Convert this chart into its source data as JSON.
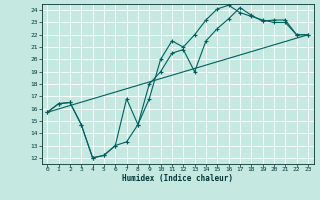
{
  "xlabel": "Humidex (Indice chaleur)",
  "bg_color": "#c5e8e0",
  "grid_color": "#ffffff",
  "line_color": "#006060",
  "xlim": [
    -0.5,
    23.5
  ],
  "ylim": [
    11.5,
    24.5
  ],
  "xticks": [
    0,
    1,
    2,
    3,
    4,
    5,
    6,
    7,
    8,
    9,
    10,
    11,
    12,
    13,
    14,
    15,
    16,
    17,
    18,
    19,
    20,
    21,
    22,
    23
  ],
  "yticks": [
    12,
    13,
    14,
    15,
    16,
    17,
    18,
    19,
    20,
    21,
    22,
    23,
    24
  ],
  "line1_x": [
    0,
    1,
    2,
    3,
    4,
    5,
    6,
    7,
    8,
    9,
    10,
    11,
    12,
    13,
    14,
    15,
    16,
    17,
    18,
    19,
    20,
    21,
    22,
    23
  ],
  "line1_y": [
    15.7,
    16.4,
    16.5,
    14.7,
    12.0,
    12.2,
    13.0,
    13.3,
    14.7,
    16.8,
    20.0,
    21.5,
    21.0,
    22.0,
    23.2,
    24.1,
    24.4,
    23.8,
    23.5,
    23.2,
    23.0,
    23.0,
    22.0,
    22.0
  ],
  "line2_x": [
    0,
    1,
    2,
    3,
    4,
    5,
    6,
    7,
    8,
    9,
    10,
    11,
    12,
    13,
    14,
    15,
    16,
    17,
    18,
    19,
    20,
    21,
    22,
    23
  ],
  "line2_y": [
    15.7,
    16.4,
    16.5,
    14.7,
    12.0,
    12.2,
    13.0,
    16.8,
    14.7,
    18.0,
    19.0,
    20.5,
    20.8,
    19.0,
    21.5,
    22.5,
    23.3,
    24.2,
    23.6,
    23.1,
    23.2,
    23.2,
    22.0,
    22.0
  ],
  "line3_x": [
    0,
    23
  ],
  "line3_y": [
    15.7,
    22.0
  ]
}
